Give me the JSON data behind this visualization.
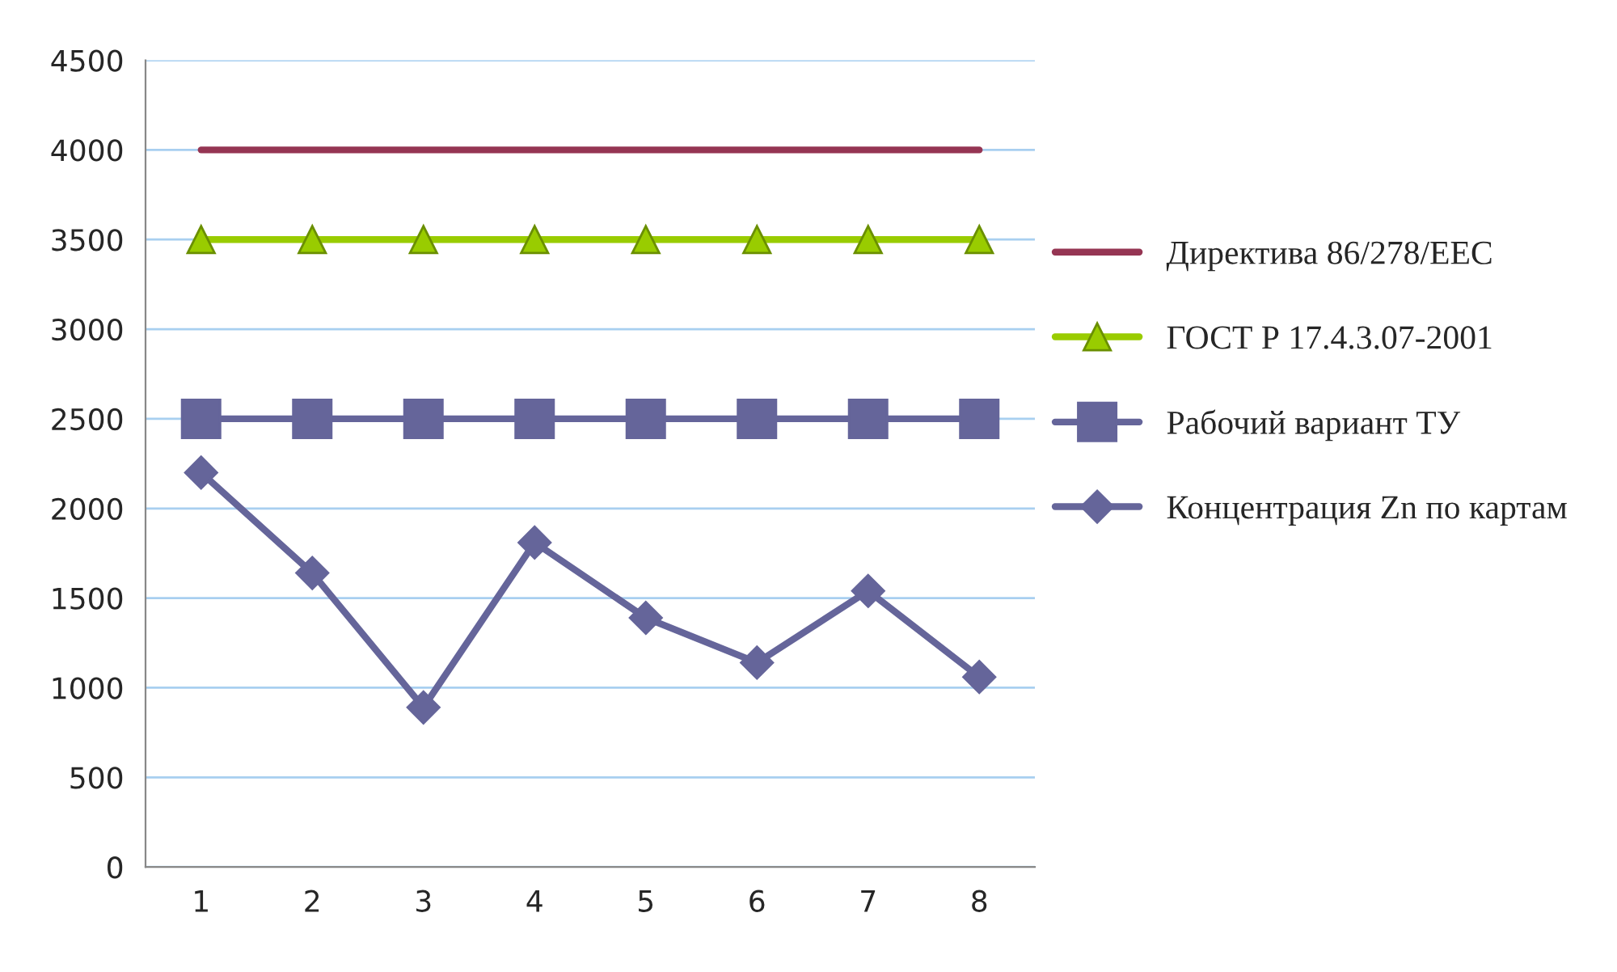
{
  "chart_data": {
    "type": "line",
    "categories": [
      "1",
      "2",
      "3",
      "4",
      "5",
      "6",
      "7",
      "8"
    ],
    "series": [
      {
        "name": "Директива 86/278/EEC",
        "color": "#953553",
        "marker": "none",
        "values": [
          4000,
          4000,
          4000,
          4000,
          4000,
          4000,
          4000,
          4000
        ]
      },
      {
        "name": "ГОСТ Р 17.4.3.07-2001",
        "color": "#99cc00",
        "marker": "triangle",
        "values": [
          3500,
          3500,
          3500,
          3500,
          3500,
          3500,
          3500,
          3500
        ]
      },
      {
        "name": "Рабочий вариант ТУ",
        "color": "#65659a",
        "marker": "square",
        "values": [
          2500,
          2500,
          2500,
          2500,
          2500,
          2500,
          2500,
          2500
        ]
      },
      {
        "name": "Концентрация Zn по картам",
        "color": "#65659a",
        "marker": "diamond",
        "values": [
          2200,
          1640,
          890,
          1810,
          1390,
          1140,
          1540,
          1060
        ]
      }
    ],
    "ylim": [
      0,
      4500
    ],
    "yticks": [
      0,
      500,
      1000,
      1500,
      2000,
      2500,
      3000,
      3500,
      4000,
      4500
    ],
    "grid": "y",
    "legend": "right",
    "line_style": "solid"
  }
}
